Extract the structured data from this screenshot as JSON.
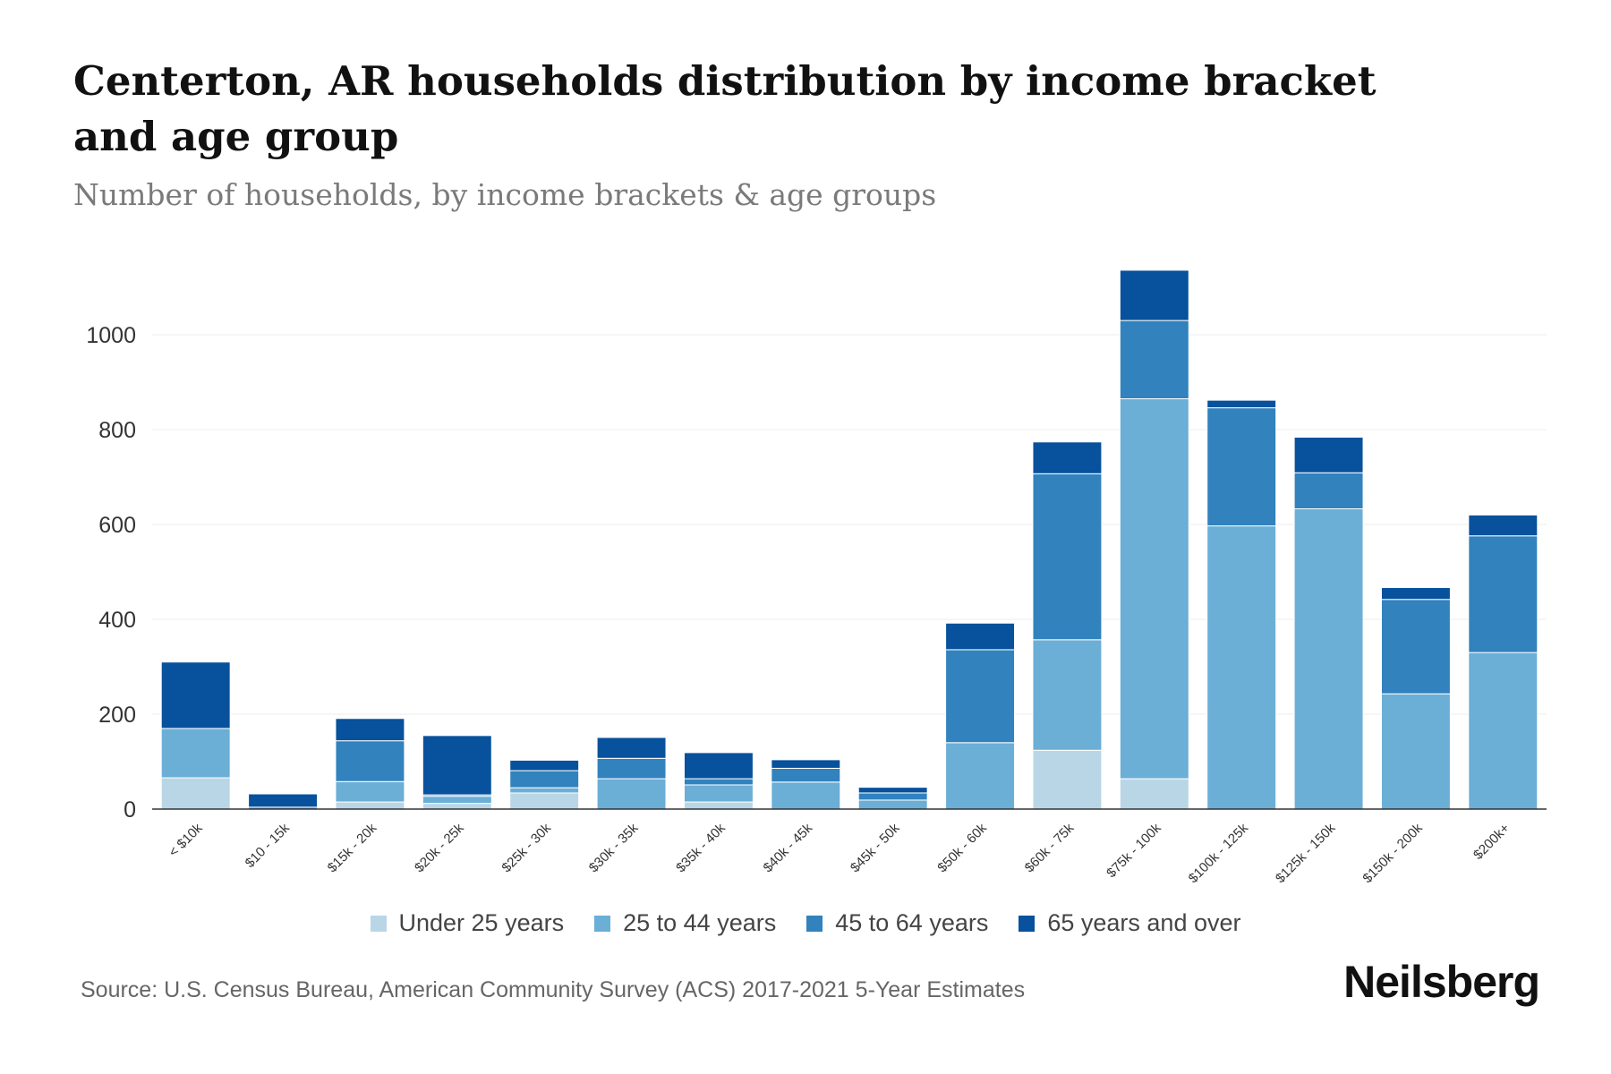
{
  "header": {
    "title": "Centerton, AR households distribution by income bracket and age group",
    "subtitle": "Number of households, by income brackets & age groups"
  },
  "footer": {
    "source": "Source: U.S. Census Bureau, American Community Survey (ACS) 2017-2021 5-Year Estimates",
    "brand": "Neilsberg"
  },
  "colors": {
    "under25": "#b9d6e6",
    "age25_44": "#6baed6",
    "age45_64": "#3182bd",
    "age65plus": "#08519c",
    "grid": "#eeeeee",
    "axis": "#333333"
  },
  "chart_data": {
    "type": "bar",
    "stacked": true,
    "title": "Centerton, AR households distribution by income bracket and age group",
    "subtitle": "Number of households, by income brackets & age groups",
    "xlabel": "",
    "ylabel": "",
    "ylim": [
      0,
      1150
    ],
    "yticks": [
      0,
      200,
      400,
      600,
      800,
      1000
    ],
    "grid": true,
    "legend_position": "bottom",
    "categories": [
      "< $10k",
      "$10 - 15k",
      "$15k - 20k",
      "$20k - 25k",
      "$25k - 30k",
      "$30k - 35k",
      "$35k - 40k",
      "$40k - 45k",
      "$45k - 50k",
      "$50k - 60k",
      "$60k - 75k",
      "$75k - 100k",
      "$100k - 125k",
      "$125k - 150k",
      "$150k - 200k",
      "$200k+"
    ],
    "series": [
      {
        "name": "Under 25 years",
        "color": "#b9d6e6",
        "values": [
          66,
          0,
          15,
          12,
          34,
          0,
          15,
          0,
          0,
          0,
          124,
          64,
          0,
          0,
          0,
          0
        ]
      },
      {
        "name": "25 to 44 years",
        "color": "#6baed6",
        "values": [
          104,
          0,
          43,
          15,
          11,
          64,
          36,
          57,
          19,
          140,
          233,
          801,
          597,
          633,
          243,
          330
        ]
      },
      {
        "name": "45 to 64 years",
        "color": "#3182bd",
        "values": [
          0,
          4,
          86,
          3,
          36,
          43,
          13,
          29,
          15,
          196,
          350,
          165,
          249,
          76,
          199,
          246
        ]
      },
      {
        "name": "65 years and over",
        "color": "#08519c",
        "values": [
          140,
          28,
          47,
          125,
          22,
          44,
          55,
          18,
          12,
          56,
          67,
          106,
          16,
          75,
          25,
          44
        ]
      }
    ]
  }
}
